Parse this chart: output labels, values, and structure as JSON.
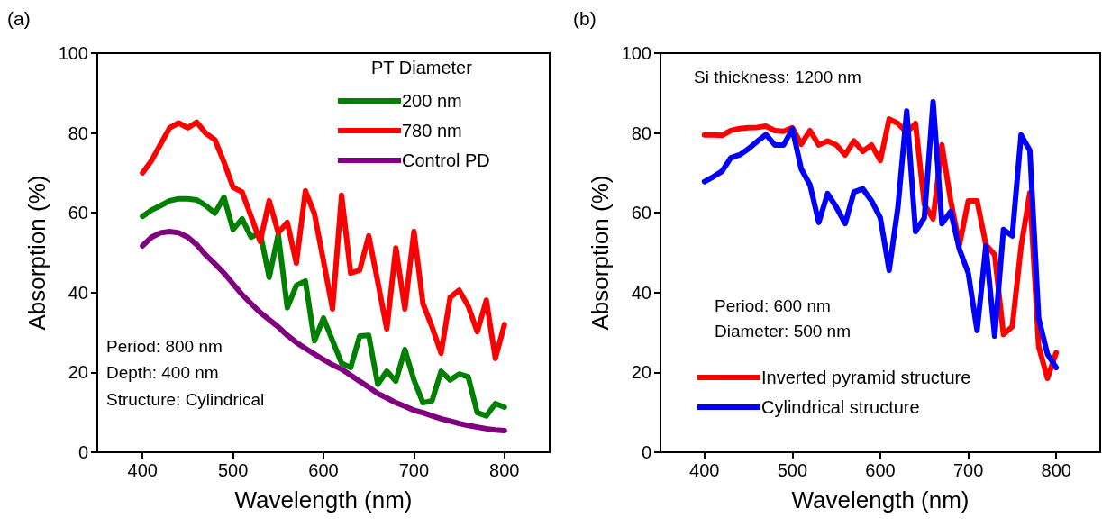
{
  "chart_data": [
    {
      "type": "line",
      "xlabel": "Wavelength (nm)",
      "ylabel": "Absorption (%)",
      "legend_title": "PT Diameter",
      "legend": "top right",
      "grid": false,
      "marker": "none",
      "line_style": "solid",
      "annotations": [
        "(a)",
        "Period: 800 nm",
        "Depth: 400 nm",
        "Structure: Cylindrical"
      ],
      "x": [
        400,
        410,
        420,
        430,
        440,
        450,
        460,
        470,
        480,
        490,
        500,
        510,
        520,
        530,
        540,
        550,
        560,
        570,
        580,
        590,
        600,
        610,
        620,
        630,
        640,
        650,
        660,
        670,
        680,
        690,
        700,
        710,
        720,
        730,
        740,
        750,
        760,
        770,
        780,
        790,
        800
      ],
      "xlim": [
        350,
        850
      ],
      "xticks": [
        400,
        500,
        600,
        700,
        800
      ],
      "ylim": [
        0,
        100
      ],
      "yticks": [
        0,
        20,
        40,
        60,
        80,
        100
      ],
      "series": [
        {
          "name": "200 nm",
          "color": "#008000",
          "values": [
            59.1,
            60.7,
            61.8,
            63,
            63.5,
            63.5,
            63.2,
            61.8,
            59.9,
            63.9,
            55.8,
            58.5,
            53.9,
            55,
            43.8,
            54.6,
            36.2,
            41.8,
            42.9,
            27.9,
            33.6,
            null,
            22.3,
            21.2,
            29.1,
            29.3,
            17,
            20.3,
            17.8,
            25.7,
            18.1,
            12.4,
            12.9,
            20.3,
            18.1,
            19.6,
            18.9,
            9.9,
            9.1,
            12.2,
            11.3
          ]
        },
        {
          "name": "780 nm",
          "color": "#ff0000",
          "values": [
            70,
            73.1,
            77.2,
            81.3,
            82.5,
            81.3,
            82.7,
            79.9,
            78.3,
            72.7,
            66.4,
            65.2,
            59.1,
            52.8,
            63,
            55,
            57.6,
            47.4,
            65.5,
            59.8,
            47.9,
            35.9,
            64.4,
            44.9,
            45.6,
            54.2,
            42.7,
            30.9,
            51.2,
            35.9,
            55.3,
            37.2,
            31.4,
            24.8,
            38.8,
            40.6,
            36.6,
            30.2,
            38.1,
            23.5,
            32
          ]
        },
        {
          "name": "Control PD",
          "color": "#800080",
          "values": [
            51.7,
            53.9,
            55,
            55.3,
            55,
            53.9,
            52,
            49.4,
            47.2,
            44.9,
            42.2,
            39.5,
            37.2,
            35,
            33.2,
            31.4,
            29.3,
            27.5,
            26,
            24.6,
            23.2,
            21.9,
            20.8,
            19.3,
            17.8,
            16.3,
            14.7,
            13.6,
            12.4,
            11.5,
            10.5,
            9.9,
            9.1,
            8.4,
            7.8,
            7.2,
            6.7,
            6.3,
            5.9,
            5.6,
            5.4
          ]
        }
      ]
    },
    {
      "type": "line",
      "xlabel": "Wavelength (nm)",
      "ylabel": "Absorption (%)",
      "legend": "bottom left",
      "grid": false,
      "marker": "none",
      "line_style": "solid",
      "annotations": [
        "(b)",
        "Si thickness: 1200 nm",
        "Period: 600 nm",
        "Diameter: 500 nm"
      ],
      "x": [
        400,
        410,
        420,
        430,
        440,
        450,
        460,
        470,
        480,
        490,
        500,
        510,
        520,
        530,
        540,
        550,
        560,
        570,
        580,
        590,
        600,
        610,
        620,
        630,
        640,
        650,
        660,
        670,
        680,
        690,
        700,
        710,
        720,
        730,
        740,
        750,
        760,
        770,
        780,
        790,
        800
      ],
      "xlim": [
        350,
        850
      ],
      "xticks": [
        400,
        500,
        600,
        700,
        800
      ],
      "ylim": [
        0,
        100
      ],
      "yticks": [
        0,
        20,
        40,
        60,
        80,
        100
      ],
      "series": [
        {
          "name": "Inverted pyramid structure",
          "color": "#ff0000",
          "values": [
            79.5,
            79.5,
            79.4,
            80.6,
            81.1,
            81.3,
            81.4,
            81.7,
            80.6,
            80.4,
            81.3,
            77.2,
            80.6,
            77,
            78,
            77,
            74.5,
            78,
            75.4,
            77,
            73.1,
            83.5,
            82.4,
            80.1,
            82.4,
            62.1,
            58.5,
            77,
            63,
            52,
            63,
            63,
            52,
            49.5,
            29.5,
            31.5,
            51.5,
            65,
            26.5,
            18.5,
            25
          ]
        },
        {
          "name": "Cylindrical structure",
          "color": "#0000ff",
          "values": [
            67.8,
            69,
            70.4,
            73.8,
            74.5,
            76,
            77.9,
            79.6,
            77,
            77,
            81,
            71,
            67,
            57.6,
            64.8,
            61.4,
            57.3,
            65.2,
            66,
            63,
            58.7,
            45.6,
            61.4,
            85.5,
            55.3,
            58.7,
            87.8,
            57.3,
            60.3,
            50.8,
            44.9,
            30.5,
            51.7,
            29.1,
            55.8,
            54.2,
            79.5,
            75.6,
            33.6,
            24.6,
            21.2
          ]
        }
      ]
    }
  ]
}
